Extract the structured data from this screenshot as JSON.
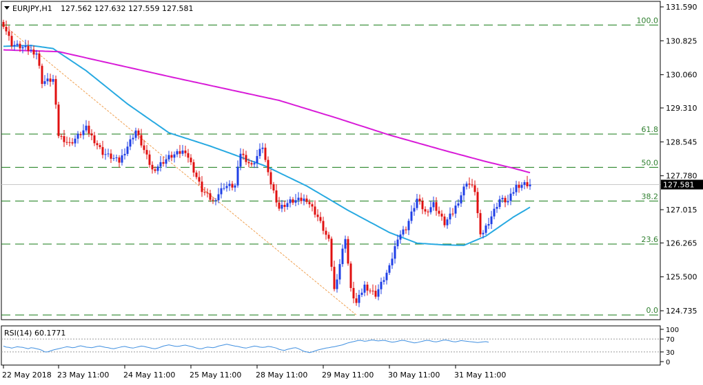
{
  "header": {
    "symbol": "EURJPY,H1",
    "ohlc": "127.562 127.632 127.559 127.581"
  },
  "rsi_header": {
    "label": "RSI(14) 60.1771"
  },
  "colors": {
    "bull_candle": "#1f3fe6",
    "bear_candle": "#e01010",
    "ma_fast": "#27a9e1",
    "ma_slow": "#d81bd8",
    "fib_level": "#137a13",
    "fib_label": "#2f7f2f",
    "trendline": "#f0a050",
    "rsi_line": "#3f8fe0",
    "price_tag_bg": "#000000",
    "price_tag_fg": "#ffffff"
  },
  "chart_data": {
    "type": "candlestick",
    "title": "EURJPY,H1",
    "ylim": [
      124.6,
      131.7
    ],
    "y_ticks": [
      "131.590",
      "130.825",
      "130.060",
      "129.310",
      "128.545",
      "127.780",
      "127.015",
      "126.265",
      "125.500",
      "124.735"
    ],
    "x_ticks": [
      "22 May 2018",
      "23 May 11:00",
      "24 May 11:00",
      "25 May 11:00",
      "28 May 11:00",
      "29 May 11:00",
      "30 May 11:00",
      "31 May 11:00"
    ],
    "current_price": "127.581",
    "fibonacci": [
      {
        "label": "100.0",
        "value": 131.18
      },
      {
        "label": "61.8",
        "value": 128.72
      },
      {
        "label": "50.0",
        "value": 127.97
      },
      {
        "label": "38.2",
        "value": 127.21
      },
      {
        "label": "23.6",
        "value": 126.24
      },
      {
        "label": "0.0",
        "value": 124.64
      }
    ],
    "close_path": [
      {
        "i": 0,
        "c": 131.2
      },
      {
        "i": 3,
        "c": 130.75
      },
      {
        "i": 8,
        "c": 130.65
      },
      {
        "i": 12,
        "c": 130.55
      },
      {
        "i": 14,
        "c": 129.9
      },
      {
        "i": 18,
        "c": 129.95
      },
      {
        "i": 20,
        "c": 128.7
      },
      {
        "i": 24,
        "c": 128.5
      },
      {
        "i": 30,
        "c": 128.85
      },
      {
        "i": 36,
        "c": 128.3
      },
      {
        "i": 42,
        "c": 128.1
      },
      {
        "i": 48,
        "c": 128.8
      },
      {
        "i": 54,
        "c": 127.9
      },
      {
        "i": 60,
        "c": 128.2
      },
      {
        "i": 66,
        "c": 128.35
      },
      {
        "i": 72,
        "c": 127.45
      },
      {
        "i": 76,
        "c": 127.2
      },
      {
        "i": 80,
        "c": 127.55
      },
      {
        "i": 84,
        "c": 127.55
      },
      {
        "i": 86,
        "c": 128.3
      },
      {
        "i": 90,
        "c": 128.0
      },
      {
        "i": 94,
        "c": 128.45
      },
      {
        "i": 96,
        "c": 127.8
      },
      {
        "i": 100,
        "c": 127.05
      },
      {
        "i": 104,
        "c": 127.2
      },
      {
        "i": 110,
        "c": 127.25
      },
      {
        "i": 114,
        "c": 126.85
      },
      {
        "i": 118,
        "c": 126.3
      },
      {
        "i": 120,
        "c": 125.2
      },
      {
        "i": 124,
        "c": 126.4
      },
      {
        "i": 126,
        "c": 125.2
      },
      {
        "i": 128,
        "c": 124.9
      },
      {
        "i": 131,
        "c": 125.3
      },
      {
        "i": 135,
        "c": 125.1
      },
      {
        "i": 140,
        "c": 125.7
      },
      {
        "i": 143,
        "c": 126.4
      },
      {
        "i": 146,
        "c": 126.6
      },
      {
        "i": 150,
        "c": 127.25
      },
      {
        "i": 153,
        "c": 126.95
      },
      {
        "i": 156,
        "c": 127.15
      },
      {
        "i": 160,
        "c": 126.7
      },
      {
        "i": 163,
        "c": 126.95
      },
      {
        "i": 166,
        "c": 127.35
      },
      {
        "i": 168,
        "c": 127.65
      },
      {
        "i": 171,
        "c": 127.45
      },
      {
        "i": 173,
        "c": 126.4
      },
      {
        "i": 176,
        "c": 126.75
      },
      {
        "i": 180,
        "c": 127.25
      },
      {
        "i": 183,
        "c": 127.2
      },
      {
        "i": 186,
        "c": 127.55
      },
      {
        "i": 189,
        "c": 127.6
      },
      {
        "i": 191,
        "c": 127.581
      }
    ],
    "series": [
      {
        "points": [
          [
            0,
            130.7
          ],
          [
            10,
            130.72
          ],
          [
            18,
            130.65
          ],
          [
            30,
            130.15
          ],
          [
            45,
            129.4
          ],
          [
            60,
            128.75
          ],
          [
            75,
            128.45
          ],
          [
            95,
            128.0
          ],
          [
            110,
            127.55
          ],
          [
            125,
            127.0
          ],
          [
            140,
            126.5
          ],
          [
            150,
            126.26
          ],
          [
            160,
            126.22
          ],
          [
            167,
            126.21
          ],
          [
            175,
            126.42
          ],
          [
            185,
            126.85
          ],
          [
            191,
            127.07
          ]
        ]
      },
      {
        "points": [
          [
            0,
            130.62
          ],
          [
            20,
            130.58
          ],
          [
            40,
            130.3
          ],
          [
            60,
            130.02
          ],
          [
            80,
            129.75
          ],
          [
            100,
            129.48
          ],
          [
            120,
            129.1
          ],
          [
            140,
            128.7
          ],
          [
            160,
            128.35
          ],
          [
            175,
            128.1
          ],
          [
            185,
            127.95
          ],
          [
            191,
            127.85
          ]
        ]
      }
    ]
  },
  "rsi": {
    "ticks": [
      "100",
      "70",
      "30",
      "0"
    ],
    "levels": [
      70,
      30
    ],
    "values": [
      48,
      45,
      44,
      42,
      44,
      46,
      45,
      44,
      42,
      40,
      43,
      42,
      40,
      38,
      35,
      30,
      30,
      33,
      36,
      38,
      40,
      42,
      44,
      46,
      45,
      43,
      44,
      47,
      49,
      47,
      45,
      44,
      43,
      45,
      47,
      48,
      46,
      44,
      43,
      41,
      40,
      42,
      44,
      46,
      47,
      45,
      43,
      42,
      44,
      46,
      48,
      47,
      45,
      43,
      41,
      40,
      42,
      45,
      48,
      50,
      52,
      50,
      48,
      47,
      48,
      50,
      51,
      49,
      47,
      45,
      42,
      40,
      40,
      43,
      45,
      44,
      43,
      45,
      48,
      50,
      52,
      54,
      52,
      50,
      48,
      47,
      45,
      43,
      42,
      44,
      46,
      48,
      47,
      45,
      44,
      45,
      47,
      46,
      44,
      42,
      38,
      36,
      35,
      38,
      40,
      42,
      43,
      40,
      36,
      32,
      30,
      28,
      30,
      33,
      36,
      38,
      40,
      42,
      43,
      45,
      46,
      48,
      50,
      52,
      55,
      58,
      60,
      62,
      64,
      66,
      65,
      63,
      64,
      66,
      67,
      65,
      64,
      65,
      66,
      64,
      62,
      60,
      61,
      63,
      65,
      66,
      64,
      62,
      60,
      58,
      59,
      61,
      63,
      65,
      66,
      64,
      62,
      61,
      63,
      65,
      67,
      66,
      64,
      62,
      61,
      63,
      65,
      64,
      63,
      62,
      61,
      60,
      59,
      60,
      61,
      62,
      60
    ]
  }
}
